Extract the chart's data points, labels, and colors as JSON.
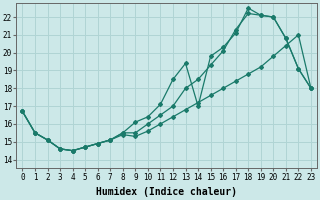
{
  "xlabel": "Humidex (Indice chaleur)",
  "ylabel": "",
  "bg_color": "#cce8e8",
  "grid_color": "#b0d4d4",
  "line_color": "#1a7a6a",
  "ylim": [
    13.5,
    22.8
  ],
  "xlim": [
    -0.5,
    23.5
  ],
  "yticks": [
    14,
    15,
    16,
    17,
    18,
    19,
    20,
    21,
    22
  ],
  "xticks": [
    0,
    1,
    2,
    3,
    4,
    5,
    6,
    7,
    8,
    9,
    10,
    11,
    12,
    13,
    14,
    15,
    16,
    17,
    18,
    19,
    20,
    21,
    22,
    23
  ],
  "line1_x": [
    0,
    1,
    2,
    3,
    4,
    5,
    6,
    7,
    8,
    9,
    10,
    11,
    12,
    13,
    14,
    15,
    16,
    17,
    18,
    19,
    20,
    21,
    22,
    23
  ],
  "line1_y": [
    16.7,
    15.5,
    15.1,
    14.6,
    14.5,
    14.7,
    14.9,
    15.1,
    15.5,
    16.1,
    16.4,
    17.1,
    18.5,
    19.4,
    17.0,
    19.8,
    20.3,
    21.1,
    22.5,
    22.1,
    22.0,
    20.8,
    19.1,
    18.0
  ],
  "line2_x": [
    0,
    1,
    2,
    3,
    4,
    5,
    6,
    7,
    8,
    9,
    10,
    11,
    12,
    13,
    14,
    15,
    16,
    17,
    18,
    19,
    20,
    21,
    22,
    23
  ],
  "line2_y": [
    16.7,
    15.5,
    15.1,
    14.6,
    14.5,
    14.7,
    14.9,
    15.1,
    15.5,
    15.5,
    16.0,
    16.5,
    17.0,
    18.0,
    18.5,
    19.3,
    20.1,
    21.3,
    22.2,
    22.1,
    22.0,
    20.8,
    19.1,
    18.0
  ],
  "line3_x": [
    0,
    1,
    2,
    3,
    4,
    5,
    6,
    7,
    8,
    9,
    10,
    11,
    12,
    13,
    14,
    15,
    16,
    17,
    18,
    19,
    20,
    21,
    22,
    23
  ],
  "line3_y": [
    16.7,
    15.5,
    15.1,
    14.6,
    14.5,
    14.7,
    14.9,
    15.1,
    15.4,
    15.3,
    15.6,
    16.0,
    16.4,
    16.8,
    17.2,
    17.6,
    18.0,
    18.4,
    18.8,
    19.2,
    19.8,
    20.4,
    21.0,
    18.0
  ],
  "title_fontsize": 7,
  "axis_fontsize": 7,
  "tick_fontsize": 5.5
}
